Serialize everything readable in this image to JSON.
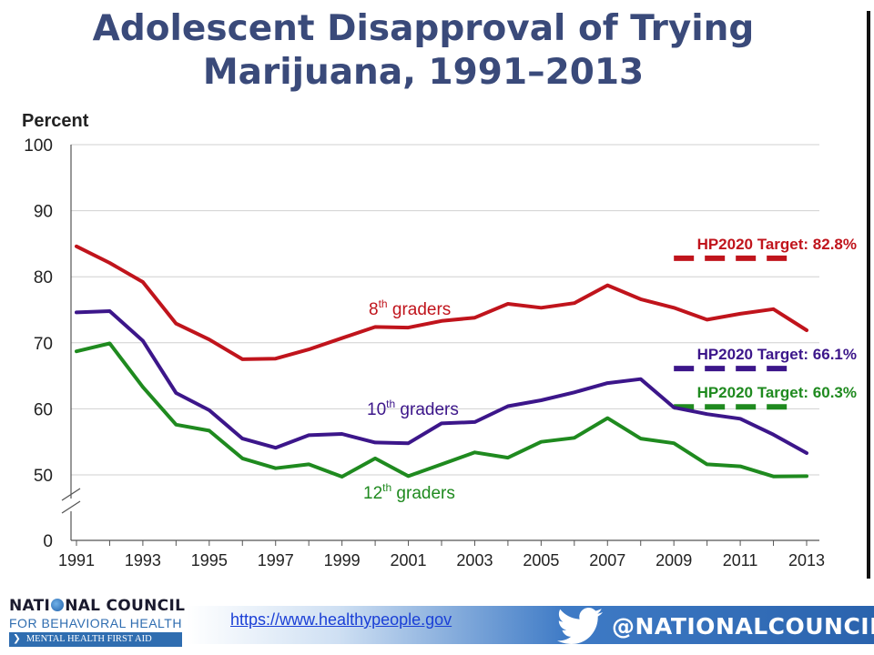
{
  "slide": {
    "title_line1": "Adolescent Disapproval of Trying",
    "title_line2": "Marijuana, 1991–2013"
  },
  "chart_data": {
    "type": "line",
    "ylabel": "Percent",
    "ylim": [
      0,
      100
    ],
    "y_ticks": [
      0,
      50,
      60,
      70,
      80,
      90,
      100
    ],
    "y_axis_break": "between 0 and 50",
    "x": [
      1991,
      1992,
      1993,
      1994,
      1995,
      1996,
      1997,
      1998,
      1999,
      2000,
      2001,
      2002,
      2003,
      2004,
      2005,
      2006,
      2007,
      2008,
      2009,
      2010,
      2011,
      2012,
      2013
    ],
    "x_tick_labels": [
      "1991",
      "1993",
      "1995",
      "1997",
      "1999",
      "2001",
      "2003",
      "2005",
      "2007",
      "2009",
      "2011",
      "2013"
    ],
    "grid": "horizontal",
    "series": [
      {
        "name_base": "8",
        "name_sup": "th",
        "name_rest": " graders",
        "color": "#c0141c",
        "values": [
          84.6,
          82.1,
          79.2,
          72.9,
          70.5,
          67.5,
          67.6,
          69.0,
          70.7,
          72.4,
          72.3,
          73.3,
          73.8,
          75.9,
          75.3,
          76.0,
          78.7,
          76.6,
          75.3,
          73.5,
          74.4,
          75.1,
          71.9
        ],
        "target": 82.8,
        "target_label": "HP2020 Target: 82.8%"
      },
      {
        "name_base": "10",
        "name_sup": "th",
        "name_rest": " graders",
        "color": "#3c168a",
        "values": [
          74.6,
          74.8,
          70.3,
          62.4,
          59.8,
          55.5,
          54.1,
          56.0,
          56.2,
          54.9,
          54.8,
          57.8,
          58.0,
          60.4,
          61.3,
          62.5,
          63.9,
          64.5,
          60.2,
          59.2,
          58.5,
          56.1,
          53.3
        ],
        "target": 66.1,
        "target_label": "HP2020 Target: 66.1%"
      },
      {
        "name_base": "12",
        "name_sup": "th",
        "name_rest": " graders",
        "color": "#1f8a1f",
        "values": [
          68.7,
          69.9,
          63.3,
          57.6,
          56.7,
          52.5,
          51.0,
          51.6,
          48.6,
          52.5,
          49.0,
          51.6,
          53.4,
          52.6,
          55.0,
          55.6,
          58.6,
          55.5,
          54.8,
          51.6,
          51.3,
          48.8,
          49.0
        ],
        "target": 60.3,
        "target_label": "HP2020 Target: 60.3%"
      }
    ]
  },
  "footer": {
    "logo_line1_a": "NATI",
    "logo_line1_b": "NAL COUNCIL",
    "logo_line2": "FOR BEHAVIORAL HEALTH",
    "logo_line3": "MENTAL HEALTH FIRST AID",
    "url": "https://www.healthypeople.gov",
    "handle": "@NATIONALCOUNCIL",
    "bar_color": "#2a63ad"
  }
}
